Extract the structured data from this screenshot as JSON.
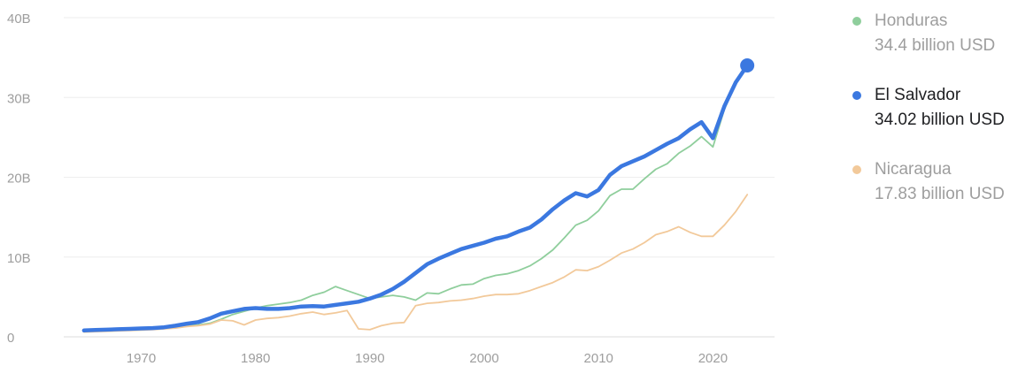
{
  "chart_data": {
    "type": "line",
    "title": "",
    "xlabel": "",
    "ylabel": "",
    "xlim": [
      1964,
      2025
    ],
    "ylim": [
      0,
      40
    ],
    "x_ticks": [
      1970,
      1980,
      1990,
      2000,
      2010,
      2020
    ],
    "x_tick_labels": [
      "1970",
      "1980",
      "1990",
      "2000",
      "2010",
      "2020"
    ],
    "y_ticks": [
      0,
      10,
      20,
      30,
      40
    ],
    "y_tick_labels": [
      "0",
      "10B",
      "20B",
      "30B",
      "40B"
    ],
    "grid": true,
    "legend_position": "right",
    "series": [
      {
        "name": "Honduras",
        "color": "#8fce9c",
        "emphasis": false,
        "x": [
          1965,
          1966,
          1967,
          1968,
          1969,
          1970,
          1971,
          1972,
          1973,
          1974,
          1975,
          1976,
          1977,
          1978,
          1979,
          1980,
          1981,
          1982,
          1983,
          1984,
          1985,
          1986,
          1987,
          1988,
          1989,
          1990,
          1991,
          1992,
          1993,
          1994,
          1995,
          1996,
          1997,
          1998,
          1999,
          2000,
          2001,
          2002,
          2003,
          2004,
          2005,
          2006,
          2007,
          2008,
          2009,
          2010,
          2011,
          2012,
          2013,
          2014,
          2015,
          2016,
          2017,
          2018,
          2019,
          2020,
          2021,
          2022,
          2023
        ],
        "values": [
          0.7,
          0.8,
          0.85,
          0.9,
          0.95,
          1.0,
          1.05,
          1.1,
          1.25,
          1.4,
          1.5,
          1.7,
          2.2,
          2.8,
          3.2,
          3.6,
          3.9,
          4.1,
          4.3,
          4.6,
          5.2,
          5.6,
          6.3,
          5.8,
          5.3,
          4.8,
          5.0,
          5.2,
          5.0,
          4.6,
          5.5,
          5.4,
          6.0,
          6.5,
          6.6,
          7.3,
          7.7,
          7.9,
          8.3,
          8.9,
          9.8,
          10.9,
          12.4,
          14.0,
          14.6,
          15.8,
          17.7,
          18.5,
          18.5,
          19.8,
          21.0,
          21.7,
          23.0,
          23.9,
          25.1,
          23.8,
          28.5,
          31.8,
          34.4
        ],
        "end_label": "34.4 billion USD"
      },
      {
        "name": "El Salvador",
        "color": "#3b78e0",
        "emphasis": true,
        "x": [
          1965,
          1966,
          1967,
          1968,
          1969,
          1970,
          1971,
          1972,
          1973,
          1974,
          1975,
          1976,
          1977,
          1978,
          1979,
          1980,
          1981,
          1982,
          1983,
          1984,
          1985,
          1986,
          1987,
          1988,
          1989,
          1990,
          1991,
          1992,
          1993,
          1994,
          1995,
          1996,
          1997,
          1998,
          1999,
          2000,
          2001,
          2002,
          2003,
          2004,
          2005,
          2006,
          2007,
          2008,
          2009,
          2010,
          2011,
          2012,
          2013,
          2014,
          2015,
          2016,
          2017,
          2018,
          2019,
          2020,
          2021,
          2022,
          2023
        ],
        "values": [
          0.8,
          0.85,
          0.9,
          0.95,
          1.0,
          1.05,
          1.1,
          1.2,
          1.4,
          1.65,
          1.85,
          2.3,
          2.9,
          3.2,
          3.5,
          3.6,
          3.5,
          3.5,
          3.6,
          3.8,
          3.85,
          3.8,
          4.0,
          4.2,
          4.4,
          4.8,
          5.3,
          6.0,
          6.9,
          8.0,
          9.1,
          9.8,
          10.4,
          11.0,
          11.4,
          11.8,
          12.3,
          12.6,
          13.2,
          13.7,
          14.7,
          16.0,
          17.1,
          18.0,
          17.6,
          18.4,
          20.3,
          21.4,
          22.0,
          22.6,
          23.4,
          24.2,
          24.9,
          26.0,
          26.9,
          24.9,
          28.9,
          31.9,
          34.02
        ],
        "end_label": "34.02 billion USD"
      },
      {
        "name": "Nicaragua",
        "color": "#f2c99a",
        "emphasis": false,
        "x": [
          1965,
          1966,
          1967,
          1968,
          1969,
          1970,
          1971,
          1972,
          1973,
          1974,
          1975,
          1976,
          1977,
          1978,
          1979,
          1980,
          1981,
          1982,
          1983,
          1984,
          1985,
          1986,
          1987,
          1988,
          1989,
          1990,
          1991,
          1992,
          1993,
          1994,
          1995,
          1996,
          1997,
          1998,
          1999,
          2000,
          2001,
          2002,
          2003,
          2004,
          2005,
          2006,
          2007,
          2008,
          2009,
          2010,
          2011,
          2012,
          2013,
          2014,
          2015,
          2016,
          2017,
          2018,
          2019,
          2020,
          2021,
          2022,
          2023
        ],
        "values": [
          0.6,
          0.65,
          0.7,
          0.75,
          0.8,
          0.85,
          0.9,
          1.0,
          1.1,
          1.3,
          1.4,
          1.6,
          2.1,
          2.0,
          1.5,
          2.1,
          2.3,
          2.4,
          2.6,
          2.9,
          3.1,
          2.8,
          3.0,
          3.3,
          1.0,
          0.9,
          1.4,
          1.7,
          1.8,
          3.9,
          4.2,
          4.3,
          4.5,
          4.6,
          4.8,
          5.1,
          5.3,
          5.3,
          5.4,
          5.8,
          6.3,
          6.8,
          7.5,
          8.4,
          8.3,
          8.8,
          9.6,
          10.5,
          11.0,
          11.8,
          12.8,
          13.2,
          13.8,
          13.1,
          12.6,
          12.6,
          14.0,
          15.7,
          17.83
        ],
        "end_label": "17.83 billion USD"
      }
    ],
    "highlight_point": {
      "series": "El Salvador",
      "x": 2023,
      "y": 34.02
    }
  }
}
